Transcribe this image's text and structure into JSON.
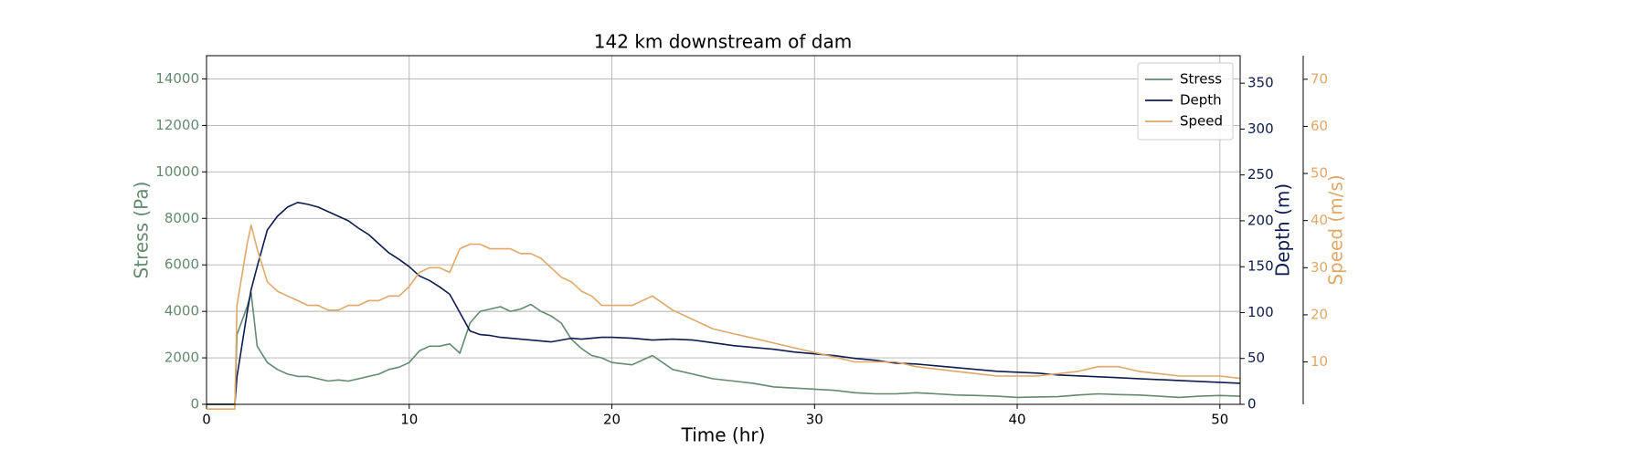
{
  "chart_data": {
    "type": "line",
    "title": "142 km downstream of dam",
    "xlabel": "Time (hr)",
    "ylabel": "Stress (Pa)",
    "y2label": "Depth (m)",
    "y3label": "Speed (m/s)",
    "x": [
      0,
      1,
      1.4,
      1.5,
      2,
      2.2,
      2.5,
      3,
      3.5,
      4,
      4.5,
      5,
      5.5,
      6,
      6.5,
      7,
      7.5,
      8,
      8.5,
      9,
      9.5,
      10,
      10.5,
      11,
      11.5,
      12,
      12.5,
      13,
      13.5,
      14,
      14.5,
      15,
      15.5,
      16,
      16.5,
      17,
      17.5,
      18,
      18.5,
      19,
      19.5,
      20,
      21,
      22,
      23,
      24,
      25,
      26,
      27,
      28,
      29,
      30,
      31,
      32,
      33,
      34,
      35,
      36,
      37,
      38,
      39,
      40,
      41,
      42,
      43,
      44,
      45,
      46,
      47,
      48,
      49,
      50,
      51
    ],
    "series": [
      {
        "name": "Stress",
        "color": "#638a6f",
        "axis": "y",
        "values": [
          0,
          0,
          0,
          3000,
          4200,
          4800,
          2500,
          1800,
          1500,
          1300,
          1200,
          1200,
          1100,
          1000,
          1050,
          1000,
          1100,
          1200,
          1300,
          1500,
          1600,
          1800,
          2300,
          2500,
          2500,
          2600,
          2200,
          3500,
          4000,
          4100,
          4200,
          4000,
          4100,
          4300,
          4000,
          3800,
          3500,
          2800,
          2400,
          2100,
          2000,
          1800,
          1700,
          2100,
          1500,
          1300,
          1100,
          1000,
          900,
          750,
          700,
          650,
          600,
          500,
          450,
          450,
          500,
          450,
          400,
          380,
          350,
          300,
          320,
          330,
          400,
          450,
          420,
          400,
          350,
          300,
          350,
          380,
          350
        ]
      },
      {
        "name": "Depth",
        "color": "#0d1b4f",
        "axis": "y2",
        "values": [
          0,
          0,
          0,
          30,
          100,
          125,
          150,
          190,
          205,
          215,
          220,
          218,
          215,
          210,
          205,
          200,
          192,
          185,
          175,
          165,
          158,
          150,
          140,
          135,
          128,
          120,
          100,
          80,
          76,
          75,
          73,
          72,
          71,
          70,
          69,
          68,
          70,
          72,
          71,
          72,
          73,
          73,
          72,
          70,
          71,
          70,
          67,
          64,
          62,
          60,
          57,
          55,
          53,
          50,
          48,
          45,
          44,
          42,
          40,
          38,
          36,
          35,
          34,
          32,
          31,
          30,
          29,
          28,
          27,
          26,
          25,
          24,
          23
        ]
      },
      {
        "name": "Speed",
        "color": "#e0a868",
        "axis": "y3",
        "values": [
          0,
          0,
          0,
          22,
          35,
          39,
          34,
          27,
          25,
          24,
          23,
          22,
          22,
          21,
          21,
          22,
          22,
          23,
          23,
          24,
          24,
          26,
          29,
          30,
          30,
          29,
          34,
          35,
          35,
          34,
          34,
          34,
          33,
          33,
          32,
          30,
          28,
          27,
          25,
          24,
          22,
          22,
          22,
          24,
          21,
          19,
          17,
          16,
          15,
          14,
          13,
          12,
          11,
          10,
          10,
          10,
          9,
          8.5,
          8,
          7.5,
          7,
          7,
          7,
          7.5,
          8,
          9,
          9,
          8,
          7.5,
          7,
          7,
          7,
          6.5
        ]
      }
    ],
    "xlim": [
      0,
      51
    ],
    "xticks": [
      0,
      10,
      20,
      30,
      40,
      50
    ],
    "ylim": [
      0,
      15000
    ],
    "yticks": [
      0,
      2000,
      4000,
      6000,
      8000,
      10000,
      12000,
      14000
    ],
    "y2lim": [
      0,
      380
    ],
    "y2ticks": [
      0,
      50,
      100,
      150,
      200,
      250,
      300,
      350
    ],
    "y3lim": [
      1,
      75
    ],
    "y3ticks": [
      10,
      20,
      30,
      40,
      50,
      60,
      70
    ],
    "grid": true,
    "legend": "upper right"
  }
}
